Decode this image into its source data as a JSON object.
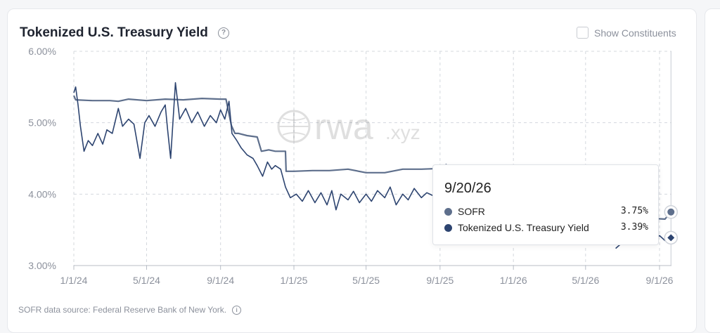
{
  "header": {
    "title": "Tokenized U.S. Treasury Yield",
    "show_constituents_label": "Show Constituents"
  },
  "footer": {
    "source": "SOFR data source: Federal Reserve Bank of New York."
  },
  "tooltip": {
    "date": "9/20/26",
    "rows": [
      {
        "name": "SOFR",
        "value": "3.75%",
        "color": "#5e6f8c"
      },
      {
        "name": "Tokenized U.S. Treasury Yield",
        "value": "3.39%",
        "color": "#2d4470"
      }
    ]
  },
  "watermark": {
    "text": "rwa",
    "suffix": ".xyz"
  },
  "chart_data": {
    "type": "line",
    "xlabel": "",
    "ylabel": "",
    "ylim": [
      3.0,
      6.0
    ],
    "y_ticks": [
      "3.00%",
      "4.00%",
      "5.00%",
      "6.00%"
    ],
    "x_ticks": [
      "1/1/24",
      "5/1/24",
      "9/1/24",
      "1/1/25",
      "5/1/25",
      "9/1/25",
      "1/1/26",
      "5/1/26",
      "9/1/26"
    ],
    "grid": true,
    "series": [
      {
        "name": "SOFR",
        "color": "#5e6f8c",
        "points": [
          [
            "2024-01-01",
            5.38
          ],
          [
            "2024-01-04",
            5.32
          ],
          [
            "2024-02-01",
            5.31
          ],
          [
            "2024-03-01",
            5.31
          ],
          [
            "2024-03-15",
            5.3
          ],
          [
            "2024-04-01",
            5.33
          ],
          [
            "2024-05-01",
            5.31
          ],
          [
            "2024-06-01",
            5.33
          ],
          [
            "2024-07-01",
            5.32
          ],
          [
            "2024-08-01",
            5.34
          ],
          [
            "2024-09-01",
            5.33
          ],
          [
            "2024-09-10",
            5.33
          ],
          [
            "2024-09-19",
            4.96
          ],
          [
            "2024-09-25",
            4.85
          ],
          [
            "2024-10-01",
            4.85
          ],
          [
            "2024-10-15",
            4.82
          ],
          [
            "2024-11-01",
            4.8
          ],
          [
            "2024-11-08",
            4.6
          ],
          [
            "2024-11-20",
            4.62
          ],
          [
            "2024-12-01",
            4.6
          ],
          [
            "2024-12-18",
            4.6
          ],
          [
            "2024-12-19",
            4.32
          ],
          [
            "2025-01-01",
            4.32
          ],
          [
            "2025-02-01",
            4.33
          ],
          [
            "2025-03-01",
            4.33
          ],
          [
            "2025-04-01",
            4.35
          ],
          [
            "2025-05-01",
            4.3
          ],
          [
            "2025-06-01",
            4.3
          ],
          [
            "2025-07-01",
            4.35
          ],
          [
            "2025-08-01",
            4.35
          ],
          [
            "2025-09-05",
            4.36
          ],
          [
            "2025-09-12",
            4.42
          ],
          [
            "2026-08-20",
            3.66
          ],
          [
            "2026-09-10",
            3.65
          ],
          [
            "2026-09-20",
            3.75
          ]
        ]
      },
      {
        "name": "Tokenized U.S. Treasury Yield",
        "color": "#2d4470",
        "points": [
          [
            "2024-01-01",
            5.42
          ],
          [
            "2024-01-04",
            5.5
          ],
          [
            "2024-01-08",
            5.25
          ],
          [
            "2024-01-12",
            4.95
          ],
          [
            "2024-01-18",
            4.6
          ],
          [
            "2024-01-25",
            4.75
          ],
          [
            "2024-02-01",
            4.68
          ],
          [
            "2024-02-10",
            4.85
          ],
          [
            "2024-02-18",
            4.7
          ],
          [
            "2024-02-25",
            4.9
          ],
          [
            "2024-03-05",
            4.85
          ],
          [
            "2024-03-15",
            5.2
          ],
          [
            "2024-03-22",
            4.95
          ],
          [
            "2024-04-01",
            5.05
          ],
          [
            "2024-04-10",
            4.98
          ],
          [
            "2024-04-20",
            4.5
          ],
          [
            "2024-04-28",
            5.0
          ],
          [
            "2024-05-05",
            5.1
          ],
          [
            "2024-05-15",
            4.95
          ],
          [
            "2024-05-25",
            5.15
          ],
          [
            "2024-06-01",
            5.25
          ],
          [
            "2024-06-05",
            4.9
          ],
          [
            "2024-06-10",
            4.5
          ],
          [
            "2024-06-18",
            5.56
          ],
          [
            "2024-06-25",
            5.05
          ],
          [
            "2024-07-05",
            5.2
          ],
          [
            "2024-07-15",
            5.0
          ],
          [
            "2024-07-25",
            5.15
          ],
          [
            "2024-08-05",
            4.95
          ],
          [
            "2024-08-15",
            5.1
          ],
          [
            "2024-08-25",
            5.0
          ],
          [
            "2024-09-01",
            5.18
          ],
          [
            "2024-09-08",
            5.05
          ],
          [
            "2024-09-15",
            5.3
          ],
          [
            "2024-09-20",
            4.85
          ],
          [
            "2024-09-28",
            4.75
          ],
          [
            "2024-10-05",
            4.65
          ],
          [
            "2024-10-15",
            4.55
          ],
          [
            "2024-10-25",
            4.5
          ],
          [
            "2024-11-01",
            4.4
          ],
          [
            "2024-11-10",
            4.25
          ],
          [
            "2024-11-18",
            4.45
          ],
          [
            "2024-11-25",
            4.35
          ],
          [
            "2024-12-01",
            4.4
          ],
          [
            "2024-12-10",
            4.35
          ],
          [
            "2024-12-18",
            4.1
          ],
          [
            "2024-12-26",
            3.95
          ],
          [
            "2025-01-05",
            4.0
          ],
          [
            "2025-01-15",
            3.9
          ],
          [
            "2025-01-25",
            4.05
          ],
          [
            "2025-02-05",
            3.88
          ],
          [
            "2025-02-15",
            4.02
          ],
          [
            "2025-02-25",
            3.85
          ],
          [
            "2025-03-05",
            4.05
          ],
          [
            "2025-03-12",
            3.78
          ],
          [
            "2025-03-20",
            4.0
          ],
          [
            "2025-04-01",
            3.92
          ],
          [
            "2025-04-10",
            4.04
          ],
          [
            "2025-04-20",
            3.88
          ],
          [
            "2025-05-01",
            4.0
          ],
          [
            "2025-05-10",
            3.9
          ],
          [
            "2025-05-20",
            4.05
          ],
          [
            "2025-06-01",
            3.95
          ],
          [
            "2025-06-10",
            4.1
          ],
          [
            "2025-06-20",
            3.85
          ],
          [
            "2025-07-01",
            4.0
          ],
          [
            "2025-07-10",
            3.92
          ],
          [
            "2025-07-20",
            4.08
          ],
          [
            "2025-08-01",
            3.95
          ],
          [
            "2025-08-10",
            4.02
          ],
          [
            "2025-08-20",
            3.98
          ],
          [
            "2025-09-01",
            4.05
          ],
          [
            "2025-09-10",
            3.98
          ],
          [
            "2026-06-20",
            3.24
          ],
          [
            "2026-07-05",
            3.35
          ],
          [
            "2026-07-20",
            3.3
          ],
          [
            "2026-08-05",
            3.38
          ],
          [
            "2026-08-20",
            3.33
          ],
          [
            "2026-09-01",
            3.42
          ],
          [
            "2026-09-10",
            3.35
          ],
          [
            "2026-09-20",
            3.39
          ]
        ]
      }
    ]
  }
}
